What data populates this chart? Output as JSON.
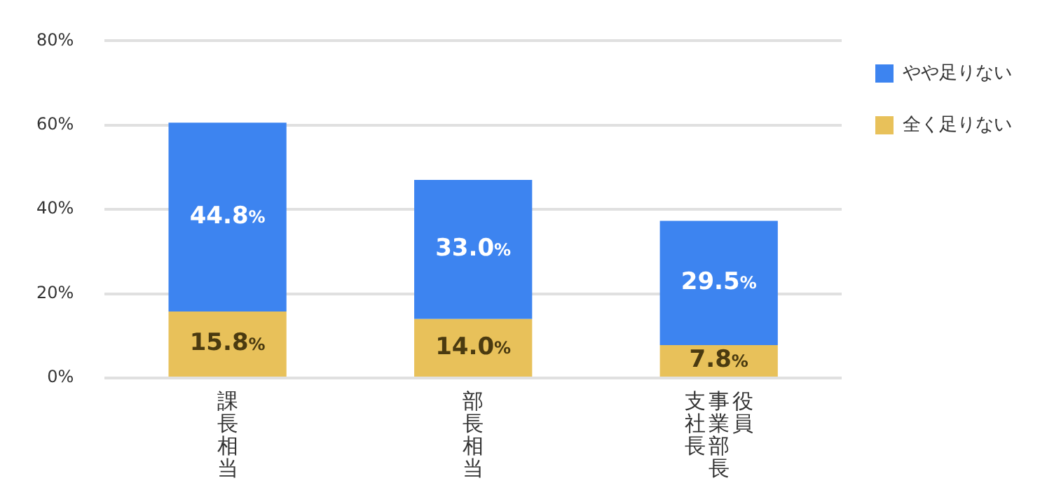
{
  "chart_data": {
    "type": "bar",
    "stacked": true,
    "categories": [
      "課長相当",
      "部長相当",
      "役員事業部長支社長"
    ],
    "series": [
      {
        "name": "全く足りない",
        "color": "#e8c15a",
        "values": [
          15.8,
          14.0,
          7.8
        ],
        "value_labels": [
          "15.8%",
          "14.0%",
          "7.8%"
        ]
      },
      {
        "name": "やや足りない",
        "color": "#3d84f0",
        "values": [
          44.8,
          33.0,
          29.5
        ],
        "value_labels": [
          "44.8%",
          "33.0%",
          "29.5%"
        ]
      }
    ],
    "ylim": [
      0,
      80
    ],
    "yticks": [
      {
        "value": 0,
        "label": "0%"
      },
      {
        "value": 20,
        "label": "20%"
      },
      {
        "value": 40,
        "label": "40%"
      },
      {
        "value": 60,
        "label": "60%"
      },
      {
        "value": 80,
        "label": "80%"
      }
    ],
    "grid": "y",
    "legend": "top right"
  }
}
